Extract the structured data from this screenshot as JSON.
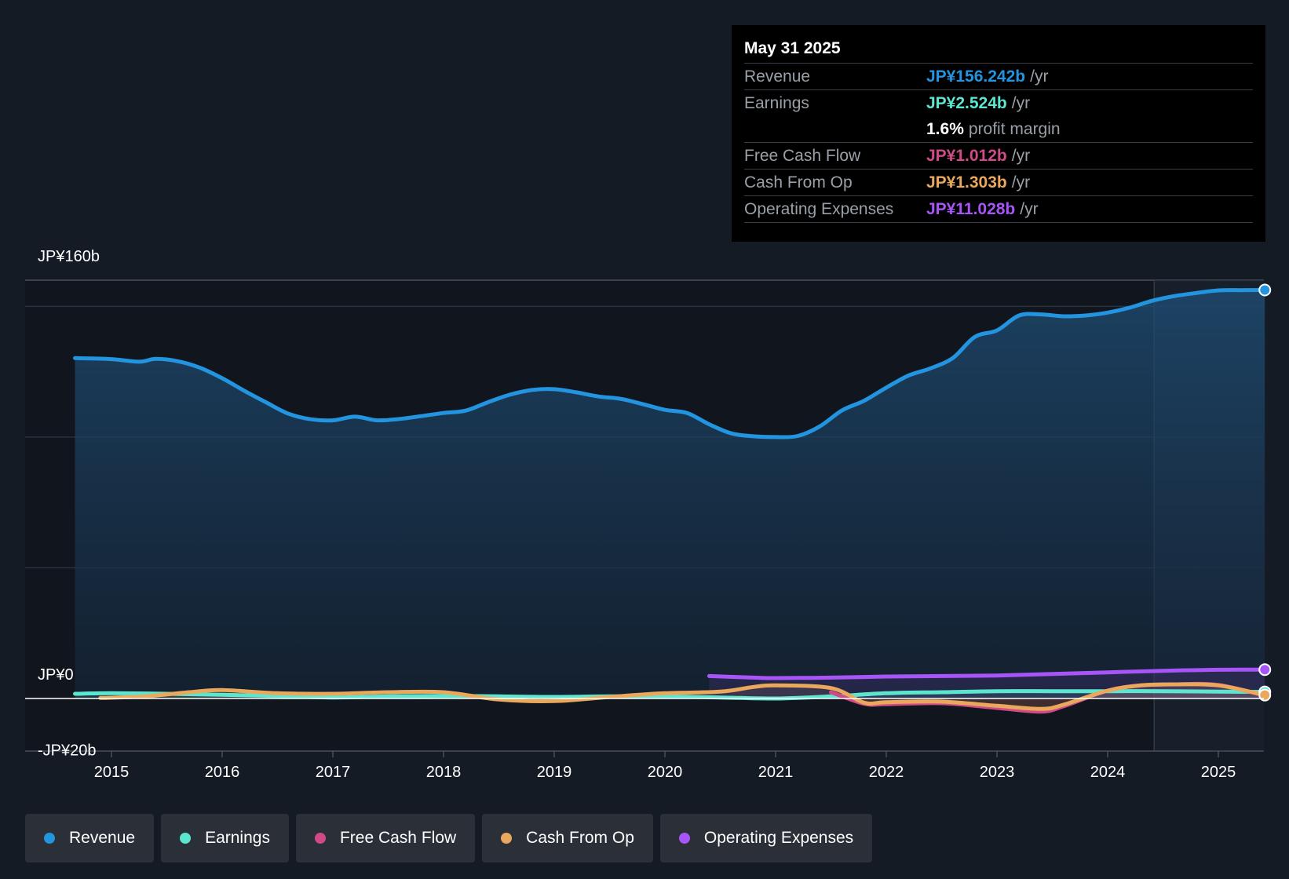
{
  "chart_data": {
    "type": "area",
    "y_axis": {
      "labels": [
        "JP¥160b",
        "JP¥0",
        "-JP¥20b"
      ],
      "ylim": [
        -20,
        160
      ],
      "unit": "JP¥ billions"
    },
    "x_axis": {
      "ticks": [
        "2015",
        "2016",
        "2017",
        "2018",
        "2019",
        "2020",
        "2021",
        "2022",
        "2023",
        "2024",
        "2025"
      ]
    },
    "forecast_shade_start": 2024.42,
    "series": [
      {
        "name": "Revenue",
        "color": "#2394df",
        "points": [
          [
            2014.67,
            130.2
          ],
          [
            2015.0,
            129.8
          ],
          [
            2015.25,
            128.8
          ],
          [
            2015.4,
            129.9
          ],
          [
            2015.6,
            129.0
          ],
          [
            2015.8,
            126.5
          ],
          [
            2016.0,
            122.5
          ],
          [
            2016.2,
            117.7
          ],
          [
            2016.4,
            113.2
          ],
          [
            2016.6,
            108.9
          ],
          [
            2016.8,
            106.8
          ],
          [
            2017.0,
            106.4
          ],
          [
            2017.2,
            107.8
          ],
          [
            2017.4,
            106.4
          ],
          [
            2017.6,
            106.9
          ],
          [
            2017.8,
            108.0
          ],
          [
            2018.0,
            109.2
          ],
          [
            2018.2,
            110.1
          ],
          [
            2018.4,
            113.3
          ],
          [
            2018.6,
            116.2
          ],
          [
            2018.8,
            118.0
          ],
          [
            2019.0,
            118.3
          ],
          [
            2019.2,
            117.1
          ],
          [
            2019.4,
            115.5
          ],
          [
            2019.6,
            114.6
          ],
          [
            2019.8,
            112.6
          ],
          [
            2020.0,
            110.4
          ],
          [
            2020.2,
            109.2
          ],
          [
            2020.4,
            104.9
          ],
          [
            2020.6,
            101.4
          ],
          [
            2020.8,
            100.3
          ],
          [
            2021.0,
            100.0
          ],
          [
            2021.2,
            100.4
          ],
          [
            2021.4,
            104.1
          ],
          [
            2021.6,
            110.2
          ],
          [
            2021.8,
            113.9
          ],
          [
            2022.0,
            118.9
          ],
          [
            2022.2,
            123.5
          ],
          [
            2022.4,
            126.3
          ],
          [
            2022.6,
            130.2
          ],
          [
            2022.8,
            138.3
          ],
          [
            2023.0,
            140.8
          ],
          [
            2023.2,
            146.5
          ],
          [
            2023.4,
            146.9
          ],
          [
            2023.6,
            146.2
          ],
          [
            2023.8,
            146.5
          ],
          [
            2024.0,
            147.6
          ],
          [
            2024.2,
            149.5
          ],
          [
            2024.4,
            152.1
          ],
          [
            2024.6,
            153.9
          ],
          [
            2024.8,
            155.1
          ],
          [
            2025.0,
            156.1
          ],
          [
            2025.2,
            156.2
          ],
          [
            2025.42,
            156.242
          ]
        ],
        "end_marker": true
      },
      {
        "name": "Earnings",
        "color": "#5ce6cf",
        "points": [
          [
            2014.67,
            1.8
          ],
          [
            2015.0,
            2.0
          ],
          [
            2015.5,
            1.8
          ],
          [
            2016.0,
            1.4
          ],
          [
            2016.5,
            1.0
          ],
          [
            2017.0,
            0.4
          ],
          [
            2017.5,
            0.8
          ],
          [
            2018.0,
            1.0
          ],
          [
            2018.5,
            0.8
          ],
          [
            2019.0,
            0.6
          ],
          [
            2019.5,
            0.8
          ],
          [
            2020.0,
            0.8
          ],
          [
            2020.5,
            0.4
          ],
          [
            2021.0,
            0.0
          ],
          [
            2021.5,
            0.8
          ],
          [
            2022.0,
            2.0
          ],
          [
            2022.5,
            2.4
          ],
          [
            2023.0,
            2.8
          ],
          [
            2023.5,
            2.8
          ],
          [
            2024.0,
            2.8
          ],
          [
            2024.5,
            2.8
          ],
          [
            2025.0,
            2.6
          ],
          [
            2025.42,
            2.524
          ]
        ],
        "end_marker": true
      },
      {
        "name": "Free Cash Flow",
        "color": "#d04a87",
        "points": [
          [
            2021.5,
            2.4
          ],
          [
            2021.8,
            -2.0
          ],
          [
            2022.0,
            -2.2
          ],
          [
            2022.5,
            -1.8
          ],
          [
            2023.0,
            -3.6
          ],
          [
            2023.4,
            -5.0
          ],
          [
            2023.6,
            -3.0
          ],
          [
            2024.0,
            3.0
          ],
          [
            2024.3,
            5.0
          ],
          [
            2024.6,
            5.4
          ],
          [
            2025.0,
            5.2
          ],
          [
            2025.42,
            1.012
          ]
        ],
        "end_marker": false
      },
      {
        "name": "Cash From Op",
        "color": "#e9a85b",
        "points": [
          [
            2014.9,
            0.2
          ],
          [
            2015.3,
            0.8
          ],
          [
            2015.7,
            2.4
          ],
          [
            2016.0,
            3.2
          ],
          [
            2016.5,
            2.0
          ],
          [
            2017.0,
            1.8
          ],
          [
            2017.5,
            2.4
          ],
          [
            2018.0,
            2.4
          ],
          [
            2018.5,
            -0.4
          ],
          [
            2019.0,
            -1.0
          ],
          [
            2019.5,
            0.6
          ],
          [
            2020.0,
            2.0
          ],
          [
            2020.5,
            2.6
          ],
          [
            2020.8,
            4.4
          ],
          [
            2021.0,
            5.0
          ],
          [
            2021.5,
            4.0
          ],
          [
            2021.8,
            -1.6
          ],
          [
            2022.0,
            -1.4
          ],
          [
            2022.5,
            -1.2
          ],
          [
            2023.0,
            -2.8
          ],
          [
            2023.4,
            -4.0
          ],
          [
            2023.6,
            -2.4
          ],
          [
            2024.0,
            3.0
          ],
          [
            2024.3,
            5.0
          ],
          [
            2024.6,
            5.4
          ],
          [
            2025.0,
            5.0
          ],
          [
            2025.42,
            1.303
          ]
        ],
        "end_marker": true
      },
      {
        "name": "Operating Expenses",
        "color": "#a855f7",
        "points": [
          [
            2020.4,
            8.6
          ],
          [
            2020.8,
            8.0
          ],
          [
            2021.0,
            7.8
          ],
          [
            2021.5,
            8.0
          ],
          [
            2022.0,
            8.4
          ],
          [
            2022.5,
            8.6
          ],
          [
            2023.0,
            8.8
          ],
          [
            2023.5,
            9.4
          ],
          [
            2024.0,
            10.0
          ],
          [
            2024.5,
            10.6
          ],
          [
            2025.0,
            11.0
          ],
          [
            2025.42,
            11.028
          ]
        ],
        "end_marker": true
      }
    ]
  },
  "tooltip": {
    "date": "May 31 2025",
    "rows": [
      {
        "label": "Revenue",
        "value": "JP¥156.242b",
        "unit": "/yr",
        "color": "#2394df"
      },
      {
        "label": "Earnings",
        "value": "JP¥2.524b",
        "unit": "/yr",
        "color": "#5ce6cf"
      },
      {
        "label": "",
        "value": "1.6%",
        "unit": "profit margin",
        "color": "#ffffff"
      },
      {
        "label": "Free Cash Flow",
        "value": "JP¥1.012b",
        "unit": "/yr",
        "color": "#d04a87"
      },
      {
        "label": "Cash From Op",
        "value": "JP¥1.303b",
        "unit": "/yr",
        "color": "#e9a85b"
      },
      {
        "label": "Operating Expenses",
        "value": "JP¥11.028b",
        "unit": "/yr",
        "color": "#a855f7"
      }
    ]
  },
  "legend": [
    {
      "label": "Revenue",
      "color": "#2394df"
    },
    {
      "label": "Earnings",
      "color": "#5ce6cf"
    },
    {
      "label": "Free Cash Flow",
      "color": "#d04a87"
    },
    {
      "label": "Cash From Op",
      "color": "#e9a85b"
    },
    {
      "label": "Operating Expenses",
      "color": "#a855f7"
    }
  ]
}
